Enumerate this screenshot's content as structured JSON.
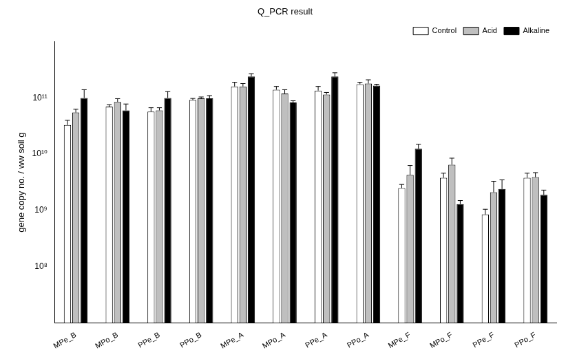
{
  "chart_data": {
    "type": "bar",
    "title": "Q_PCR result",
    "y_label": "gene copy no. / ww soil g",
    "log": "y",
    "grid": false,
    "legend": "top-right",
    "categories": [
      "MPe_B",
      "MPo_B",
      "PPe_B",
      "PPo_B",
      "MPe_A",
      "MPo_A",
      "PPe_A",
      "PPo_A",
      "MPe_F",
      "MPo_F",
      "PPe_F",
      "PPo_F"
    ],
    "series": [
      {
        "name": "Control",
        "color": "#ffffff",
        "values": [
          33000000000,
          70000000000,
          57000000000,
          92000000000,
          160000000000,
          140000000000,
          135000000000,
          175000000000,
          2500000000,
          3800000000,
          850000000,
          3800000000
        ],
        "errors": [
          7000000000,
          6000000000,
          10000000000,
          6000000000,
          30000000000,
          20000000000,
          25000000000,
          15000000000,
          400000000,
          800000000,
          200000000,
          800000000
        ]
      },
      {
        "name": "Acid",
        "color": "#bfbfbf",
        "values": [
          55000000000,
          85000000000,
          60000000000,
          98000000000,
          160000000000,
          120000000000,
          115000000000,
          180000000000,
          4300000000,
          6500000000,
          2100000000,
          3900000000
        ],
        "errors": [
          8000000000,
          12000000000,
          7000000000,
          6000000000,
          20000000000,
          20000000000,
          10000000000,
          30000000000,
          2000000000,
          2000000000,
          1200000000,
          800000000
        ]
      },
      {
        "name": "Alkaline",
        "color": "#000000",
        "values": [
          100000000000,
          60000000000,
          100000000000,
          98000000000,
          240000000000,
          83000000000,
          240000000000,
          165000000000,
          12500000000,
          1300000000,
          2400000000,
          1900000000
        ],
        "errors": [
          40000000000,
          18000000000,
          30000000000,
          12000000000,
          30000000000,
          6000000000,
          40000000000,
          10000000000,
          2500000000,
          200000000,
          1100000000,
          400000000
        ]
      }
    ],
    "ylim": [
      10000000,
      1000000000000
    ],
    "yticks": [
      {
        "value": 100000000,
        "label": "10⁸"
      },
      {
        "value": 1000000000,
        "label": "10⁹"
      },
      {
        "value": 10000000000,
        "label": "10¹⁰"
      },
      {
        "value": 100000000000,
        "label": "10¹¹"
      }
    ]
  }
}
